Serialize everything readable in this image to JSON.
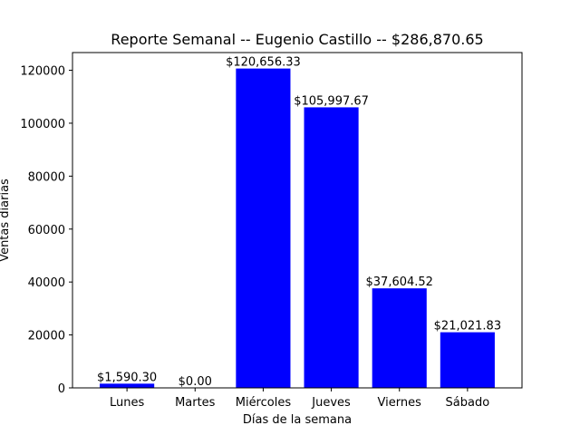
{
  "chart_data": {
    "type": "bar",
    "title": "Reporte Semanal -- Eugenio Castillo  -- $286,870.65",
    "xlabel": "Días de la semana",
    "ylabel": "Ventas diarias",
    "categories": [
      "Lunes",
      "Martes",
      "Miércoles",
      "Jueves",
      "Viernes",
      "Sábado"
    ],
    "values": [
      1590.3,
      0.0,
      120656.33,
      105997.67,
      37604.52,
      21021.83
    ],
    "data_labels": [
      "$1,590.30",
      "$0.00",
      "$120,656.33",
      "$105,997.67",
      "$37,604.52",
      "$21,021.83"
    ],
    "ylim": [
      0,
      126689
    ],
    "yticks": [
      0,
      20000,
      40000,
      60000,
      80000,
      100000,
      120000
    ],
    "ytick_labels": [
      "0",
      "20000",
      "40000",
      "60000",
      "80000",
      "100000",
      "120000"
    ],
    "bar_color": "#0000ff",
    "grid": false,
    "legend": "none"
  }
}
